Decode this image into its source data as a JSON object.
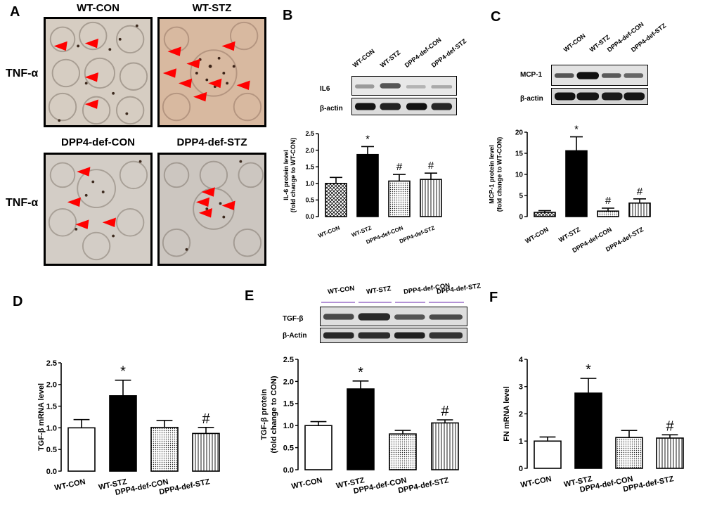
{
  "panels": {
    "A": {
      "letter": "A",
      "groups": [
        "WT-CON",
        "WT-STZ",
        "DPP4-def-CON",
        "DPP4-def-STZ"
      ],
      "stain_label": "TNF-α"
    },
    "B": {
      "letter": "B",
      "lanes": [
        "WT-CON",
        "WT-STZ",
        "DPP4-def-CON",
        "DPP4-def-STZ"
      ],
      "bands": [
        "IL6",
        "β-actin"
      ]
    },
    "C": {
      "letter": "C",
      "lanes": [
        "WT-CON",
        "WT-STZ",
        "DPP4-def-CON",
        "DPP4-def-STZ"
      ],
      "bands": [
        "MCP-1",
        "β-actin"
      ]
    },
    "D": {
      "letter": "D"
    },
    "E": {
      "letter": "E",
      "lanes": [
        "WT-CON",
        "WT-STZ",
        "DPP4-def-CON",
        "DPP4-def-STZ"
      ],
      "bands": [
        "TGF-β",
        "β-Actin"
      ]
    },
    "F": {
      "letter": "F"
    }
  },
  "chart_data": [
    {
      "id": "B",
      "type": "bar",
      "categories": [
        "WT-CON",
        "WT-STZ",
        "DPP4-def-CON",
        "DPP4-def-STZ"
      ],
      "values": [
        1.0,
        1.87,
        1.07,
        1.12
      ],
      "errors": [
        0.18,
        0.24,
        0.2,
        0.19
      ],
      "annotations": [
        "",
        "*",
        "#",
        "#"
      ],
      "ylabel_lines": [
        "IL-6 protein level",
        "(fold change to WT-CON)"
      ],
      "ylim": [
        0,
        2.5
      ],
      "yticks": [
        "0.0",
        "0.5",
        "1.0",
        "1.5",
        "2.0",
        "2.5"
      ],
      "patterns": [
        "cross",
        "solid",
        "dots",
        "vlines"
      ]
    },
    {
      "id": "C",
      "type": "bar",
      "categories": [
        "WT-CON",
        "WT-STZ",
        "DPP4-def-CON",
        "DPP4-def-STZ"
      ],
      "values": [
        1.0,
        15.6,
        1.3,
        3.2
      ],
      "errors": [
        0.4,
        3.3,
        0.7,
        1.0
      ],
      "annotations": [
        "",
        "*",
        "#",
        "#"
      ],
      "ylabel_lines": [
        "MCP-1 protein level",
        "(fold change to WT-CON)"
      ],
      "ylim": [
        0,
        20
      ],
      "yticks": [
        "0",
        "5",
        "10",
        "15",
        "20"
      ],
      "patterns": [
        "cross",
        "solid",
        "dots",
        "vlines"
      ]
    },
    {
      "id": "D",
      "type": "bar",
      "categories": [
        "WT-CON",
        "WT-STZ",
        "DPP4-def-CON",
        "DPP4-def-STZ"
      ],
      "values": [
        1.0,
        1.74,
        1.01,
        0.87
      ],
      "errors": [
        0.19,
        0.36,
        0.16,
        0.14
      ],
      "annotations": [
        "",
        "*",
        "",
        "#"
      ],
      "ylabel_lines": [
        "TGF-β mRNA level"
      ],
      "ylim": [
        0,
        2.5
      ],
      "yticks": [
        "0.0",
        "0.5",
        "1.0",
        "1.5",
        "2.0",
        "2.5"
      ],
      "patterns": [
        "white",
        "solid",
        "dots",
        "vlines"
      ]
    },
    {
      "id": "E",
      "type": "bar",
      "categories": [
        "WT-CON",
        "WT-STZ",
        "DPP4-def-CON",
        "DPP4-def-STZ"
      ],
      "values": [
        1.0,
        1.83,
        0.81,
        1.06
      ],
      "errors": [
        0.09,
        0.18,
        0.08,
        0.07
      ],
      "annotations": [
        "",
        "*",
        "",
        "#"
      ],
      "ylabel_lines": [
        "TGF-β protein",
        "(fold change to CON)"
      ],
      "ylim": [
        0,
        2.5
      ],
      "yticks": [
        "0.0",
        "0.5",
        "1.0",
        "1.5",
        "2.0",
        "2.5"
      ],
      "patterns": [
        "white",
        "solid",
        "dots",
        "vlines"
      ]
    },
    {
      "id": "F",
      "type": "bar",
      "categories": [
        "WT-CON",
        "WT-STZ",
        "DPP4-def-CON",
        "DPP4-def-STZ"
      ],
      "values": [
        1.0,
        2.76,
        1.13,
        1.11
      ],
      "errors": [
        0.15,
        0.54,
        0.26,
        0.12
      ],
      "annotations": [
        "",
        "*",
        "",
        "#"
      ],
      "ylabel_lines": [
        "FN mRNA level"
      ],
      "ylim": [
        0,
        4
      ],
      "yticks": [
        "0",
        "1",
        "2",
        "3",
        "4"
      ],
      "patterns": [
        "white",
        "solid",
        "dots",
        "vlines"
      ]
    }
  ]
}
